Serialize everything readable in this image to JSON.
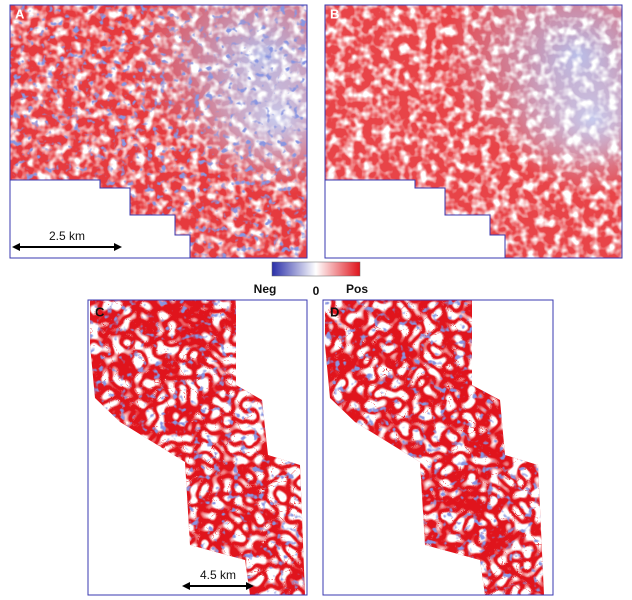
{
  "panels": [
    {
      "label": "A"
    },
    {
      "label": "B"
    },
    {
      "label": "C"
    },
    {
      "label": "D"
    }
  ],
  "scale_bars": [
    {
      "label": "2.5 km"
    },
    {
      "label": "4.5 km"
    }
  ],
  "colorbar": {
    "min_label": "Neg",
    "mid_label": "0",
    "max_label": "Pos"
  }
}
